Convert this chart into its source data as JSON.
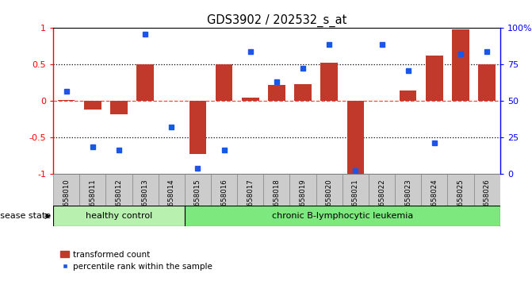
{
  "title": "GDS3902 / 202532_s_at",
  "samples": [
    "GSM658010",
    "GSM658011",
    "GSM658012",
    "GSM658013",
    "GSM658014",
    "GSM658015",
    "GSM658016",
    "GSM658017",
    "GSM658018",
    "GSM658019",
    "GSM658020",
    "GSM658021",
    "GSM658022",
    "GSM658023",
    "GSM658024",
    "GSM658025",
    "GSM658026"
  ],
  "bar_values": [
    0.02,
    -0.12,
    -0.18,
    0.5,
    0.0,
    -0.72,
    0.5,
    0.05,
    0.22,
    0.23,
    0.53,
    -1.0,
    0.0,
    0.15,
    0.62,
    0.98,
    0.5
  ],
  "dot_values": [
    0.13,
    -0.62,
    -0.67,
    0.92,
    -0.35,
    -0.92,
    -0.67,
    0.68,
    0.27,
    0.45,
    0.78,
    -0.95,
    0.78,
    0.42,
    -0.57,
    0.65,
    0.68
  ],
  "bar_color": "#c0392b",
  "dot_color": "#1a56e8",
  "healthy_label": "healthy control",
  "disease_label": "chronic B-lymphocytic leukemia",
  "healthy_count": 5,
  "disease_state_label": "disease state",
  "legend_bar": "transformed count",
  "legend_dot": "percentile rank within the sample",
  "ylim_left": [
    -1,
    1
  ],
  "ylim_right": [
    0,
    100
  ],
  "yticks_left": [
    -1,
    -0.5,
    0,
    0.5,
    1
  ],
  "ytick_labels_left": [
    "-1",
    "-0.5",
    "0",
    "0.5",
    "1"
  ],
  "yticks_right": [
    0,
    25,
    50,
    75,
    100
  ],
  "ytick_labels_right": [
    "0",
    "25",
    "50",
    "75",
    "100%"
  ],
  "hlines_dotted": [
    0.5,
    -0.5
  ],
  "hline_dashed_color": "#ff4444",
  "tick_bg": "#cccccc",
  "healthy_bg": "#b8f0b0",
  "disease_bg": "#7de87d"
}
